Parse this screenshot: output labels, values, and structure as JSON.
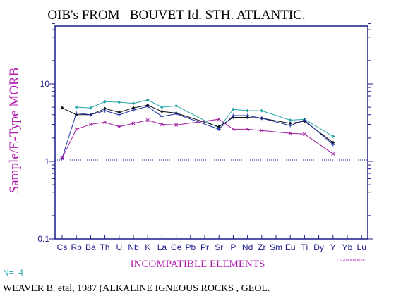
{
  "colors": {
    "background": "#ffffff",
    "axis": "#1a1a8c",
    "title": "#000000",
    "ylabel": "#b01fb0",
    "xlabel": "#b01fb0",
    "tick_label": "#1a1a8c",
    "n_label": "#2aa6a6",
    "citation": "#000000",
    "reference_line": "#1a1a8c",
    "footnote": "#b01fb0"
  },
  "chart_data": {
    "type": "line",
    "title": "OIB's FROM   BOUVET Id. STH. ATLANTIC.",
    "xlabel": "INCOMPATIBLE ELEMENTS",
    "ylabel": "Sample/E-Type MORB",
    "y_scale": "log",
    "ylim": [
      0.1,
      60
    ],
    "y_ticks": [
      {
        "value": 10,
        "label": "10"
      },
      {
        "value": 1,
        "label": "1"
      },
      {
        "value": 0.1,
        "label": "0.1"
      }
    ],
    "reference_line": 1,
    "categories": [
      "Cs",
      "Rb",
      "Ba",
      "Th",
      "U",
      "Nb",
      "K",
      "La",
      "Ce",
      "Pb",
      "Pr",
      "Sr",
      "P",
      "Nd",
      "Zr",
      "Sm",
      "Eu",
      "Ti",
      "Dy",
      "Y",
      "Yb",
      "Lu"
    ],
    "series": [
      {
        "color": "#2aa6a6",
        "marker": "diamond",
        "values": [
          null,
          5.0,
          4.9,
          5.9,
          5.8,
          5.6,
          6.2,
          5.0,
          5.2,
          null,
          null,
          2.7,
          4.7,
          4.5,
          4.5,
          null,
          3.4,
          3.5,
          null,
          2.1,
          null,
          null
        ]
      },
      {
        "color": "#111111",
        "marker": "diamond",
        "values": [
          4.9,
          4.0,
          4.0,
          4.8,
          4.3,
          4.9,
          5.3,
          4.4,
          4.2,
          null,
          null,
          2.8,
          3.7,
          3.7,
          3.6,
          null,
          3.1,
          3.3,
          null,
          1.75,
          null,
          null
        ]
      },
      {
        "color": "#1f2fa8",
        "marker": "plus",
        "values": [
          1.1,
          4.2,
          4.0,
          4.5,
          4.0,
          4.6,
          5.1,
          3.8,
          4.1,
          null,
          null,
          2.6,
          3.9,
          3.9,
          3.6,
          null,
          2.9,
          3.4,
          null,
          1.65,
          null,
          null
        ]
      },
      {
        "color": "#a020a0",
        "marker": "x",
        "values": [
          1.1,
          2.6,
          3.0,
          3.2,
          2.8,
          3.1,
          3.4,
          3.0,
          2.95,
          null,
          null,
          3.5,
          2.6,
          2.6,
          2.5,
          null,
          2.3,
          2.25,
          null,
          1.25,
          null,
          null
        ]
      }
    ]
  },
  "n_label": "N=  4",
  "footnote": "→→ C:\\GData\\BOUVET",
  "citation": "WEAVER B. etal, 1987 (ALKALINE IGNEOUS ROCKS , GEOL."
}
